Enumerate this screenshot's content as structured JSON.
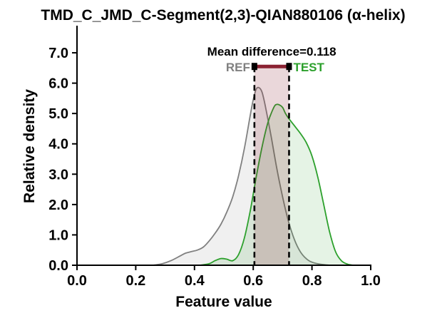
{
  "chart_data": {
    "type": "area",
    "title": "TMD_C_JMD_C-Segment(2,3)-QIAN880106 (α-helix)",
    "xlabel": "Feature value",
    "ylabel": "Relative density",
    "xlim": [
      0.0,
      1.0
    ],
    "ylim": [
      0.0,
      7.8
    ],
    "x_ticks": [
      "0.0",
      "0.2",
      "0.4",
      "0.6",
      "0.8",
      "1.0"
    ],
    "y_ticks": [
      "0.0",
      "1.0",
      "2.0",
      "3.0",
      "4.0",
      "5.0",
      "6.0",
      "7.0"
    ],
    "x_tick_values": [
      0.0,
      0.2,
      0.4,
      0.6,
      0.8,
      1.0
    ],
    "y_tick_values": [
      0.0,
      1.0,
      2.0,
      3.0,
      4.0,
      5.0,
      6.0,
      7.0
    ],
    "series": [
      {
        "name": "REF",
        "color": "#808080",
        "points": [
          [
            0.26,
            0.0
          ],
          [
            0.29,
            0.05
          ],
          [
            0.32,
            0.15
          ],
          [
            0.35,
            0.3
          ],
          [
            0.37,
            0.4
          ],
          [
            0.39,
            0.45
          ],
          [
            0.41,
            0.5
          ],
          [
            0.43,
            0.6
          ],
          [
            0.45,
            0.8
          ],
          [
            0.47,
            1.05
          ],
          [
            0.49,
            1.35
          ],
          [
            0.51,
            1.75
          ],
          [
            0.53,
            2.25
          ],
          [
            0.55,
            2.95
          ],
          [
            0.57,
            3.85
          ],
          [
            0.59,
            4.95
          ],
          [
            0.6,
            5.45
          ],
          [
            0.61,
            5.8
          ],
          [
            0.62,
            5.85
          ],
          [
            0.63,
            5.7
          ],
          [
            0.64,
            5.3
          ],
          [
            0.66,
            4.3
          ],
          [
            0.68,
            3.2
          ],
          [
            0.7,
            2.25
          ],
          [
            0.72,
            1.45
          ],
          [
            0.74,
            0.85
          ],
          [
            0.76,
            0.45
          ],
          [
            0.78,
            0.22
          ],
          [
            0.8,
            0.1
          ],
          [
            0.83,
            0.03
          ],
          [
            0.86,
            0.0
          ]
        ]
      },
      {
        "name": "TEST",
        "color": "#2ca02c",
        "points": [
          [
            0.42,
            0.0
          ],
          [
            0.45,
            0.05
          ],
          [
            0.47,
            0.15
          ],
          [
            0.49,
            0.22
          ],
          [
            0.51,
            0.2
          ],
          [
            0.53,
            0.15
          ],
          [
            0.55,
            0.35
          ],
          [
            0.57,
            0.9
          ],
          [
            0.59,
            1.8
          ],
          [
            0.61,
            2.9
          ],
          [
            0.63,
            3.9
          ],
          [
            0.65,
            4.7
          ],
          [
            0.67,
            5.2
          ],
          [
            0.68,
            5.3
          ],
          [
            0.69,
            5.28
          ],
          [
            0.7,
            5.2
          ],
          [
            0.71,
            5.0
          ],
          [
            0.72,
            4.85
          ],
          [
            0.74,
            4.6
          ],
          [
            0.76,
            4.35
          ],
          [
            0.78,
            4.05
          ],
          [
            0.8,
            3.6
          ],
          [
            0.82,
            2.9
          ],
          [
            0.84,
            2.0
          ],
          [
            0.86,
            1.1
          ],
          [
            0.88,
            0.45
          ],
          [
            0.9,
            0.15
          ],
          [
            0.92,
            0.04
          ],
          [
            0.94,
            0.0
          ]
        ]
      }
    ],
    "mean_ref": 0.604,
    "mean_test": 0.722,
    "annotation": {
      "text": "Mean difference=0.118",
      "ref_label": "REF",
      "test_label": "TEST",
      "bar_y": 6.55,
      "span_color": "#8b2232"
    },
    "grid": false,
    "legend": "none"
  }
}
